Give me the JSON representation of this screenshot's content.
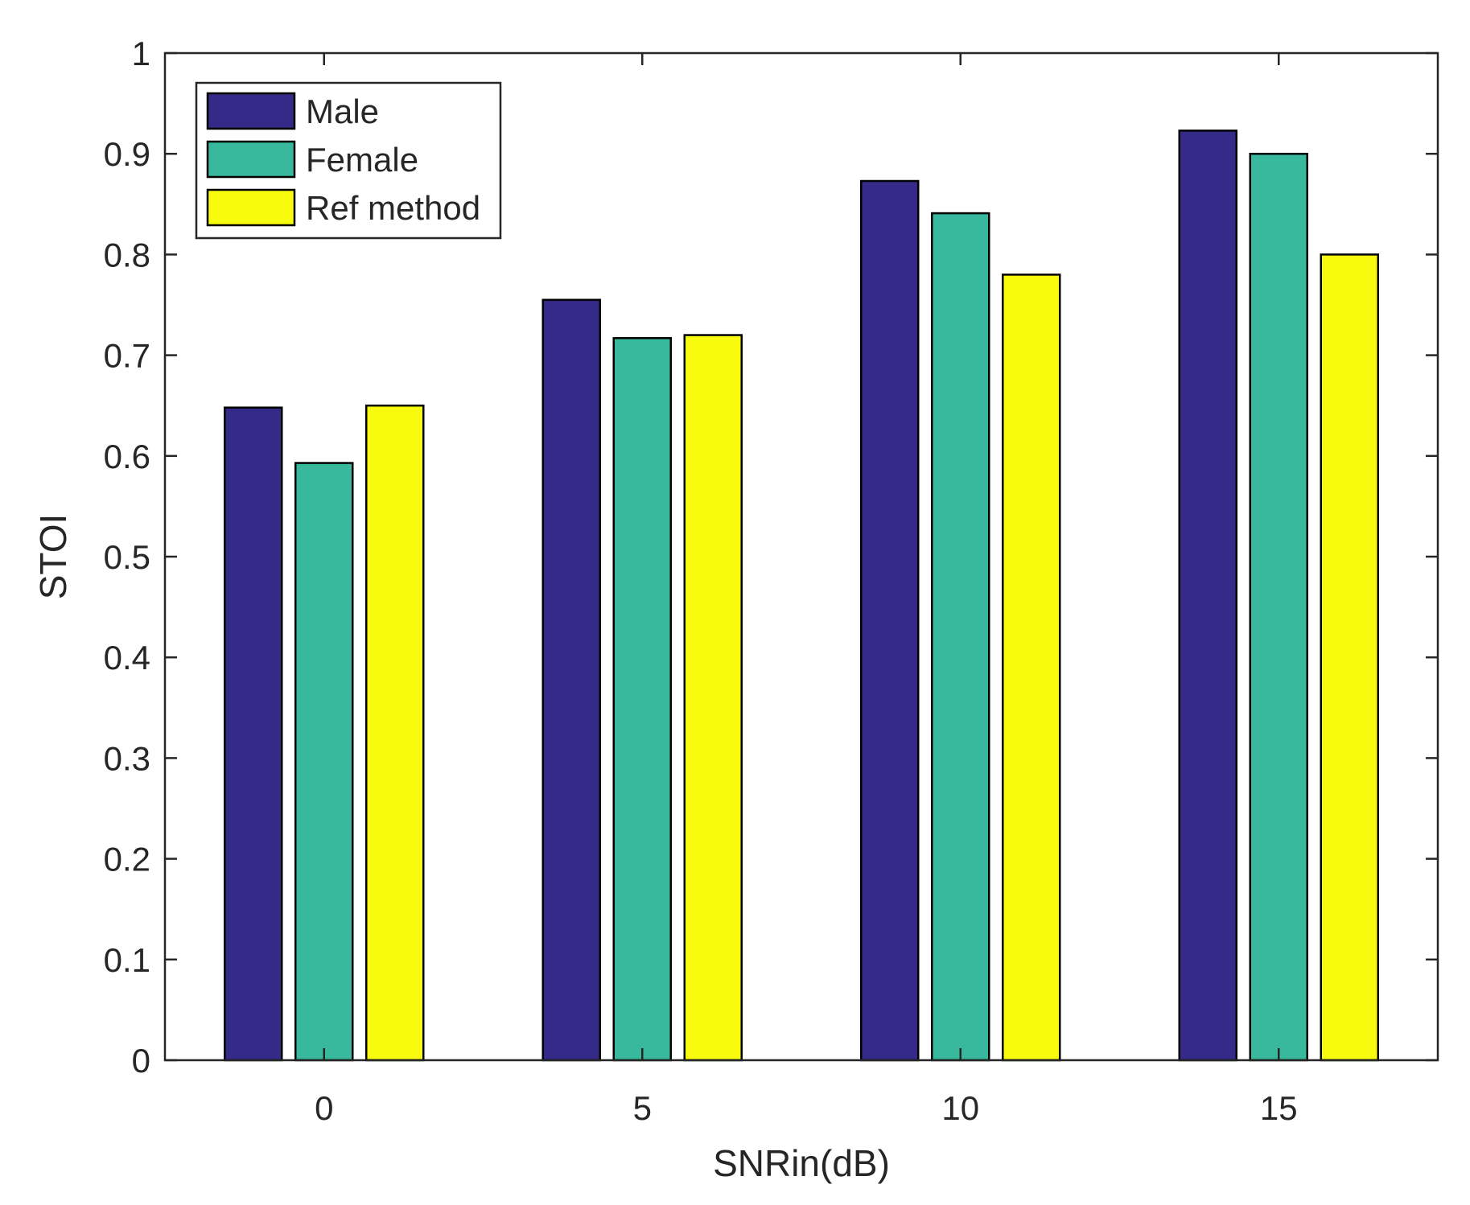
{
  "chart_data": {
    "type": "bar",
    "title": "",
    "xlabel": "SNRin(dB)",
    "ylabel": "STOI",
    "categories": [
      "0",
      "5",
      "10",
      "15"
    ],
    "ylim": [
      0,
      1
    ],
    "yticks": [
      "0",
      "0.1",
      "0.2",
      "0.3",
      "0.4",
      "0.5",
      "0.6",
      "0.7",
      "0.8",
      "0.9",
      "1"
    ],
    "grid": false,
    "legend_position": "top-left",
    "series": [
      {
        "name": "Male",
        "color": "#352A87",
        "values": [
          0.648,
          0.755,
          0.873,
          0.923
        ]
      },
      {
        "name": "Female",
        "color": "#38B99E",
        "values": [
          0.593,
          0.717,
          0.841,
          0.9
        ]
      },
      {
        "name": "Ref method",
        "color": "#F9FB0E",
        "values": [
          0.65,
          0.72,
          0.78,
          0.8
        ]
      }
    ]
  }
}
